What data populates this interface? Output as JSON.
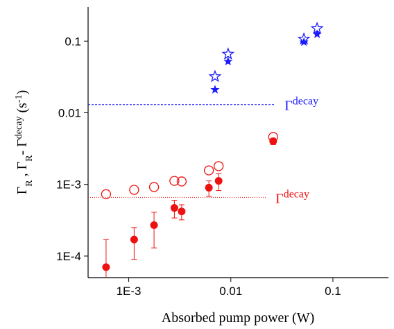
{
  "chart_data": {
    "type": "scatter",
    "xlabel": "Absorbed pump power (W)",
    "ylabel_parts": [
      {
        "text": "Γ"
      },
      {
        "text": "R",
        "sub": true
      },
      {
        "text": " ,    Γ"
      },
      {
        "text": "R",
        "sub": true
      },
      {
        "text": "- Γ"
      },
      {
        "text": "decay",
        "sup": true
      },
      {
        "text": "  (s"
      },
      {
        "text": "-1",
        "sup": true
      },
      {
        "text": ")"
      }
    ],
    "xscale": "log",
    "yscale": "log",
    "xlim": [
      0.0004,
      0.35
    ],
    "ylim": [
      5e-05,
      0.3
    ],
    "xticks": [
      {
        "value": 0.001,
        "label": "1E-3"
      },
      0.01,
      0.1
    ],
    "yticks": [
      {
        "value": 0.0001,
        "label": "1E-4"
      },
      {
        "value": 0.001,
        "label": "1E-3"
      },
      0.01,
      0.1
    ],
    "series": [
      {
        "color": "#1a1aff",
        "marker": "star-open",
        "x": [
          0.007,
          0.0094,
          0.052,
          0.07
        ],
        "values": [
          0.032,
          0.066,
          0.107,
          0.15
        ]
      },
      {
        "color": "#1a1aff",
        "marker": "star",
        "x": [
          0.007,
          0.0094,
          0.052,
          0.07
        ],
        "values": [
          0.021,
          0.052,
          0.097,
          0.125
        ]
      },
      {
        "color": "#ee1111",
        "marker": "circle-open",
        "x": [
          0.0006,
          0.00113,
          0.00177,
          0.0028,
          0.0033,
          0.0061,
          0.0076,
          0.026
        ],
        "values": [
          0.00073,
          0.00084,
          0.00092,
          0.00112,
          0.0011,
          0.00157,
          0.0018,
          0.0046
        ]
      },
      {
        "color": "#ee1111",
        "marker": "circle",
        "x": [
          0.0006,
          0.00113,
          0.00177,
          0.0028,
          0.0033,
          0.0061,
          0.0076,
          0.026
        ],
        "values": [
          7e-05,
          0.00017,
          0.00027,
          0.00047,
          0.00042,
          0.0009,
          0.00112,
          0.004
        ],
        "errors": [
          0.0001,
          8e-05,
          0.00014,
          0.00013,
          0.0001,
          0.00022,
          0.0003,
          0.0004
        ]
      }
    ],
    "hlines": [
      {
        "value": 0.013,
        "xmax": 0.027,
        "color": "#1a1aff",
        "dash": "3,2",
        "label": "Γ",
        "label_sup": "decay"
      },
      {
        "value": 0.00066,
        "xmax": 0.022,
        "color": "#ee1111",
        "dash": "1,2",
        "label": "Γ",
        "label_sup": "decay"
      }
    ]
  }
}
